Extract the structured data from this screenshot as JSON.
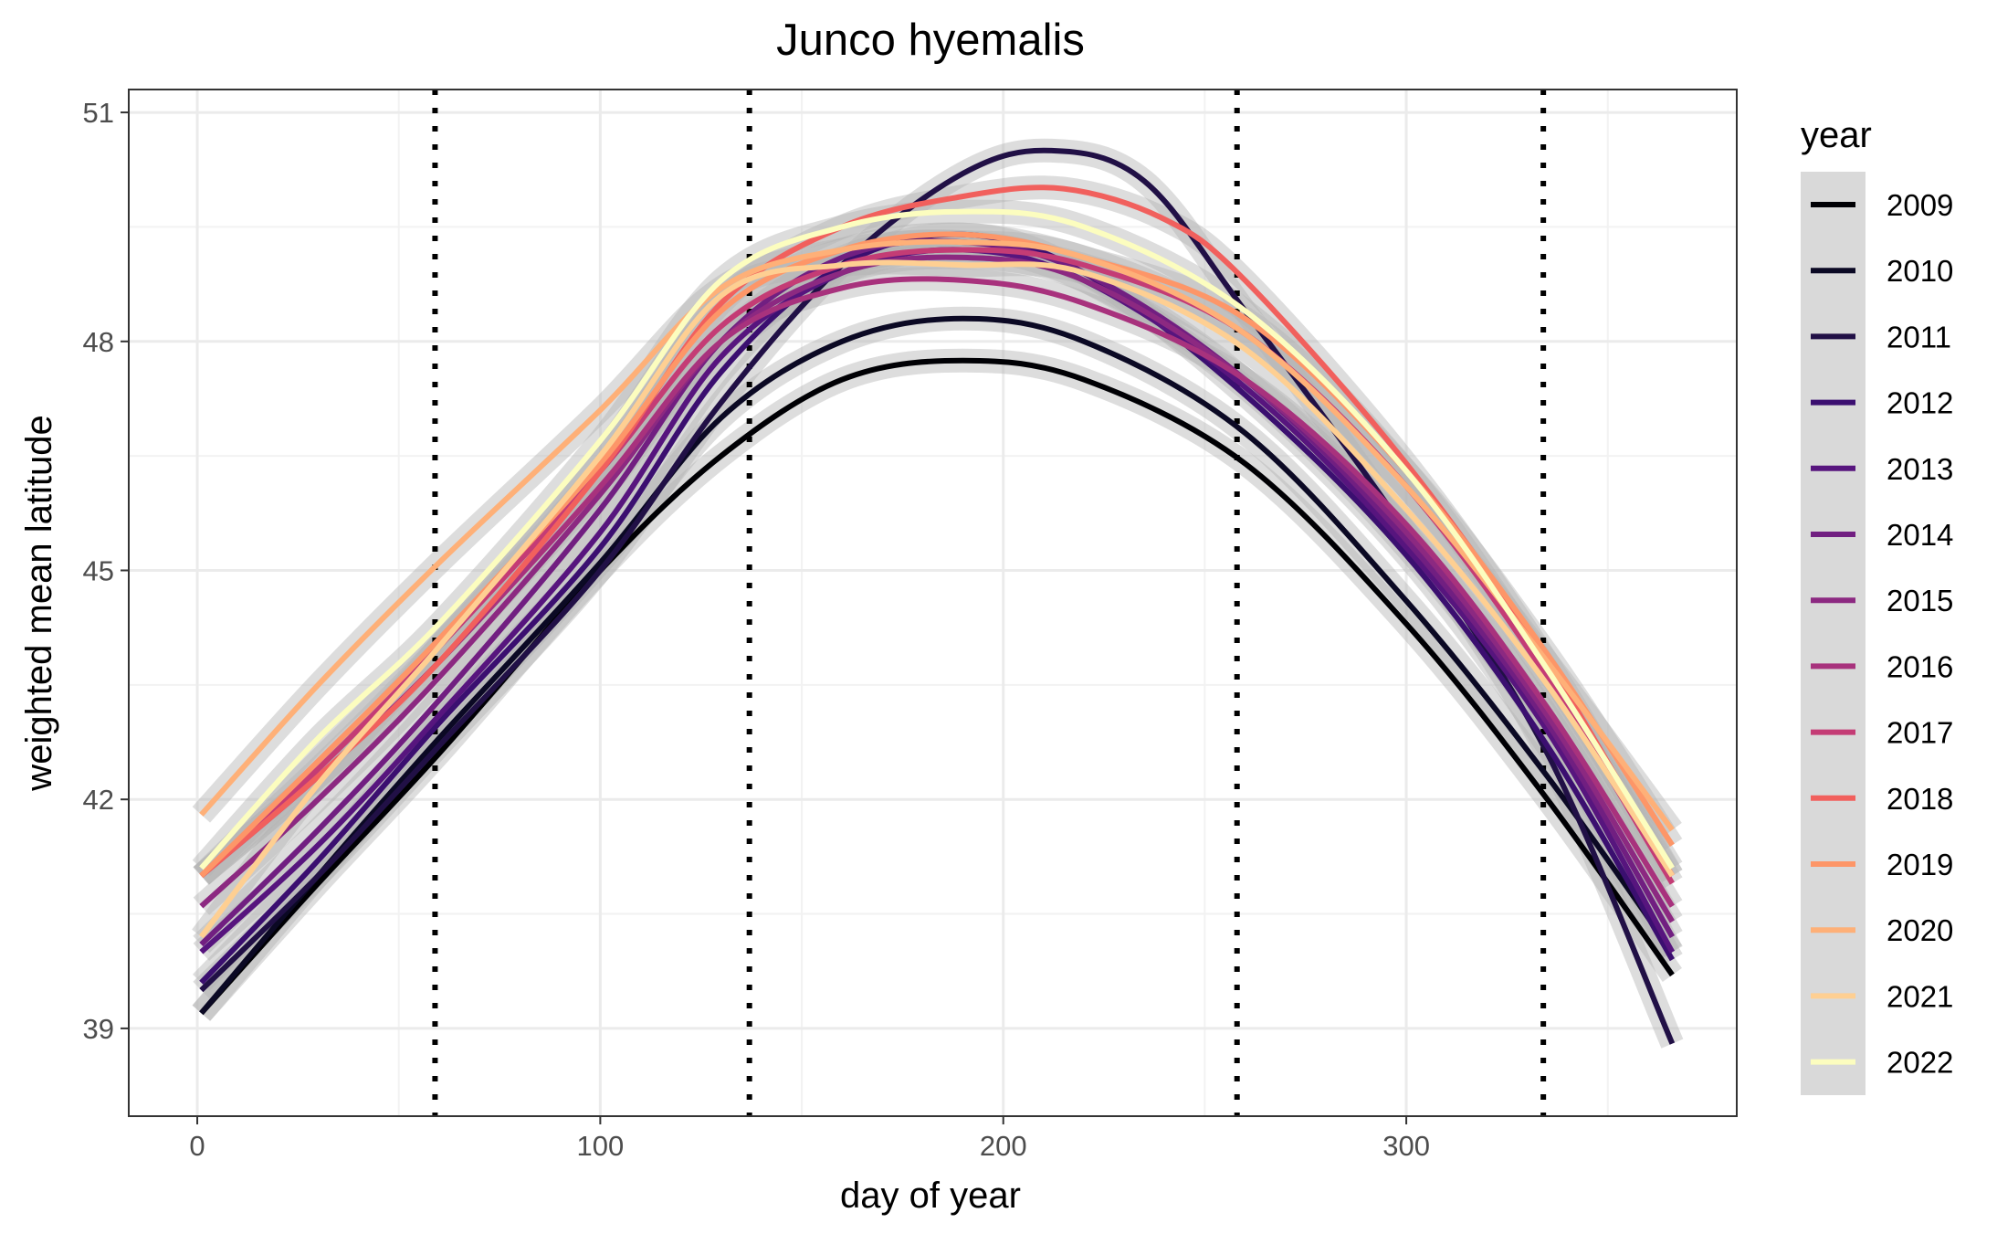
{
  "chart_data": {
    "type": "line",
    "title": "Junco hyemalis",
    "xlabel": "day of year",
    "ylabel": "weighted mean latitude",
    "xlim": [
      -17,
      382
    ],
    "ylim": [
      37.85,
      51.3
    ],
    "xticks": [
      0,
      100,
      200,
      300
    ],
    "yticks": [
      39,
      42,
      45,
      48,
      51
    ],
    "x_minor": [
      50,
      150,
      250,
      350
    ],
    "y_minor": [
      40.5,
      43.5,
      46.5,
      49.5
    ],
    "grid": true,
    "vlines": {
      "x": [
        59,
        137,
        258,
        334
      ],
      "style": "dotted",
      "color": "#000000"
    },
    "confidence_band": "grey",
    "legend": {
      "title": "year",
      "position": "right"
    },
    "series": [
      {
        "name": "2009",
        "color": "#000004",
        "points": [
          [
            1,
            39.2
          ],
          [
            30,
            40.9
          ],
          [
            60,
            42.6
          ],
          [
            100,
            45.0
          ],
          [
            130,
            46.5
          ],
          [
            160,
            47.5
          ],
          [
            190,
            47.75
          ],
          [
            220,
            47.5
          ],
          [
            260,
            46.4
          ],
          [
            300,
            44.3
          ],
          [
            335,
            42.0
          ],
          [
            366,
            39.7
          ]
        ]
      },
      {
        "name": "2010",
        "color": "#0b0924",
        "points": [
          [
            1,
            39.2
          ],
          [
            30,
            41.0
          ],
          [
            60,
            42.8
          ],
          [
            100,
            45.1
          ],
          [
            130,
            47.0
          ],
          [
            160,
            48.0
          ],
          [
            190,
            48.3
          ],
          [
            220,
            48.0
          ],
          [
            260,
            46.8
          ],
          [
            300,
            44.6
          ],
          [
            335,
            42.3
          ],
          [
            366,
            40.0
          ]
        ]
      },
      {
        "name": "2011",
        "color": "#211046",
        "points": [
          [
            1,
            39.5
          ],
          [
            30,
            41.0
          ],
          [
            60,
            42.7
          ],
          [
            100,
            45.0
          ],
          [
            130,
            47.2
          ],
          [
            160,
            49.0
          ],
          [
            190,
            50.2
          ],
          [
            212,
            50.5
          ],
          [
            235,
            50.1
          ],
          [
            260,
            48.4
          ],
          [
            300,
            45.5
          ],
          [
            335,
            42.6
          ],
          [
            366,
            38.8
          ]
        ]
      },
      {
        "name": "2012",
        "color": "#3b0f70",
        "points": [
          [
            1,
            39.6
          ],
          [
            30,
            41.2
          ],
          [
            60,
            43.0
          ],
          [
            100,
            45.3
          ],
          [
            130,
            47.6
          ],
          [
            160,
            49.0
          ],
          [
            190,
            49.4
          ],
          [
            220,
            48.9
          ],
          [
            260,
            47.3
          ],
          [
            300,
            45.2
          ],
          [
            335,
            42.7
          ],
          [
            366,
            39.9
          ]
        ]
      },
      {
        "name": "2013",
        "color": "#57157e",
        "points": [
          [
            1,
            40.0
          ],
          [
            30,
            41.4
          ],
          [
            60,
            43.1
          ],
          [
            100,
            45.5
          ],
          [
            130,
            47.8
          ],
          [
            160,
            48.9
          ],
          [
            190,
            49.2
          ],
          [
            220,
            48.8
          ],
          [
            260,
            47.4
          ],
          [
            300,
            45.3
          ],
          [
            335,
            42.9
          ],
          [
            366,
            40.0
          ]
        ]
      },
      {
        "name": "2014",
        "color": "#711f81",
        "points": [
          [
            1,
            40.1
          ],
          [
            30,
            41.6
          ],
          [
            60,
            43.3
          ],
          [
            100,
            45.8
          ],
          [
            130,
            48.0
          ],
          [
            160,
            49.1
          ],
          [
            190,
            49.3
          ],
          [
            220,
            48.9
          ],
          [
            260,
            47.5
          ],
          [
            300,
            45.4
          ],
          [
            335,
            43.0
          ],
          [
            366,
            40.2
          ]
        ]
      },
      {
        "name": "2015",
        "color": "#8c2981",
        "points": [
          [
            1,
            40.6
          ],
          [
            30,
            42.0
          ],
          [
            60,
            43.6
          ],
          [
            100,
            46.0
          ],
          [
            130,
            48.0
          ],
          [
            160,
            48.9
          ],
          [
            190,
            49.1
          ],
          [
            220,
            48.8
          ],
          [
            260,
            47.5
          ],
          [
            300,
            45.5
          ],
          [
            335,
            43.1
          ],
          [
            366,
            40.4
          ]
        ]
      },
      {
        "name": "2016",
        "color": "#a8327d",
        "points": [
          [
            1,
            41.0
          ],
          [
            30,
            42.3
          ],
          [
            60,
            43.8
          ],
          [
            100,
            46.1
          ],
          [
            130,
            48.0
          ],
          [
            160,
            48.7
          ],
          [
            190,
            48.8
          ],
          [
            220,
            48.5
          ],
          [
            260,
            47.5
          ],
          [
            300,
            45.6
          ],
          [
            335,
            43.2
          ],
          [
            366,
            40.6
          ]
        ]
      },
      {
        "name": "2017",
        "color": "#c43c75",
        "points": [
          [
            1,
            41.0
          ],
          [
            30,
            42.4
          ],
          [
            60,
            44.0
          ],
          [
            100,
            46.3
          ],
          [
            130,
            48.2
          ],
          [
            160,
            49.0
          ],
          [
            190,
            49.2
          ],
          [
            220,
            49.0
          ],
          [
            260,
            48.1
          ],
          [
            300,
            46.1
          ],
          [
            335,
            43.6
          ],
          [
            366,
            40.9
          ]
        ]
      },
      {
        "name": "2018",
        "color": "#f1605d",
        "points": [
          [
            1,
            41.0
          ],
          [
            30,
            42.3
          ],
          [
            60,
            43.8
          ],
          [
            100,
            46.3
          ],
          [
            130,
            48.5
          ],
          [
            160,
            49.5
          ],
          [
            190,
            49.9
          ],
          [
            215,
            50.0
          ],
          [
            240,
            49.6
          ],
          [
            260,
            48.8
          ],
          [
            300,
            46.4
          ],
          [
            335,
            43.8
          ],
          [
            366,
            41.0
          ]
        ]
      },
      {
        "name": "2019",
        "color": "#fd9668",
        "points": [
          [
            1,
            41.0
          ],
          [
            30,
            42.5
          ],
          [
            60,
            44.1
          ],
          [
            100,
            46.4
          ],
          [
            130,
            48.4
          ],
          [
            160,
            49.2
          ],
          [
            190,
            49.4
          ],
          [
            220,
            49.1
          ],
          [
            260,
            48.3
          ],
          [
            300,
            46.3
          ],
          [
            335,
            43.9
          ],
          [
            366,
            41.4
          ]
        ]
      },
      {
        "name": "2020",
        "color": "#feb078",
        "points": [
          [
            1,
            41.8
          ],
          [
            30,
            43.5
          ],
          [
            60,
            45.1
          ],
          [
            100,
            47.1
          ],
          [
            130,
            48.7
          ],
          [
            160,
            49.2
          ],
          [
            190,
            49.3
          ],
          [
            220,
            49.1
          ],
          [
            260,
            48.1
          ],
          [
            300,
            46.1
          ],
          [
            335,
            43.8
          ],
          [
            366,
            41.6
          ]
        ]
      },
      {
        "name": "2021",
        "color": "#fecf92",
        "points": [
          [
            1,
            40.2
          ],
          [
            30,
            42.2
          ],
          [
            60,
            44.0
          ],
          [
            100,
            46.5
          ],
          [
            130,
            48.6
          ],
          [
            160,
            49.0
          ],
          [
            190,
            49.0
          ],
          [
            220,
            48.9
          ],
          [
            260,
            47.9
          ],
          [
            300,
            45.8
          ],
          [
            335,
            43.5
          ],
          [
            366,
            41.0
          ]
        ]
      },
      {
        "name": "2022",
        "color": "#fcfdbf",
        "points": [
          [
            1,
            41.1
          ],
          [
            30,
            42.8
          ],
          [
            60,
            44.3
          ],
          [
            100,
            46.7
          ],
          [
            130,
            48.8
          ],
          [
            160,
            49.5
          ],
          [
            190,
            49.7
          ],
          [
            220,
            49.5
          ],
          [
            260,
            48.4
          ],
          [
            300,
            46.3
          ],
          [
            335,
            43.7
          ],
          [
            366,
            41.1
          ]
        ]
      }
    ]
  }
}
